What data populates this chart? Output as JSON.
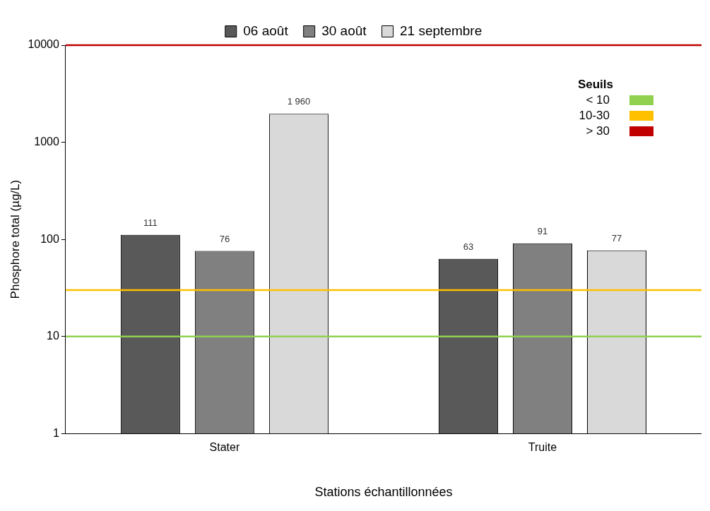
{
  "chart_data": {
    "type": "bar",
    "xlabel": "Stations échantillonnées",
    "ylabel": "Phosphore total (µg/L)",
    "categories": [
      "Stater",
      "Truite"
    ],
    "series": [
      {
        "name": "06 août",
        "color": "#595959",
        "values": [
          111,
          63
        ],
        "value_labels": [
          "111",
          "63"
        ]
      },
      {
        "name": "30 août",
        "color": "#808080",
        "values": [
          76,
          91
        ],
        "value_labels": [
          "76",
          "91"
        ]
      },
      {
        "name": "21 septembre",
        "color": "#d9d9d9",
        "values": [
          1960,
          77
        ],
        "value_labels": [
          "1 960",
          "77"
        ]
      }
    ],
    "log": "y",
    "ylim": [
      1,
      10000
    ],
    "yticks": [
      1,
      10,
      100,
      1000,
      10000
    ],
    "grid": false,
    "legend": "top",
    "annotations": [
      "Seuils",
      "< 10",
      "10-30",
      "> 30"
    ],
    "ref_lines": [
      {
        "axis": "y",
        "value": 10,
        "color": "#92d050"
      },
      {
        "axis": "y",
        "value": 30,
        "color": "#ffc000"
      },
      {
        "axis": "y",
        "value": 10000,
        "color": "#c00000"
      }
    ]
  }
}
